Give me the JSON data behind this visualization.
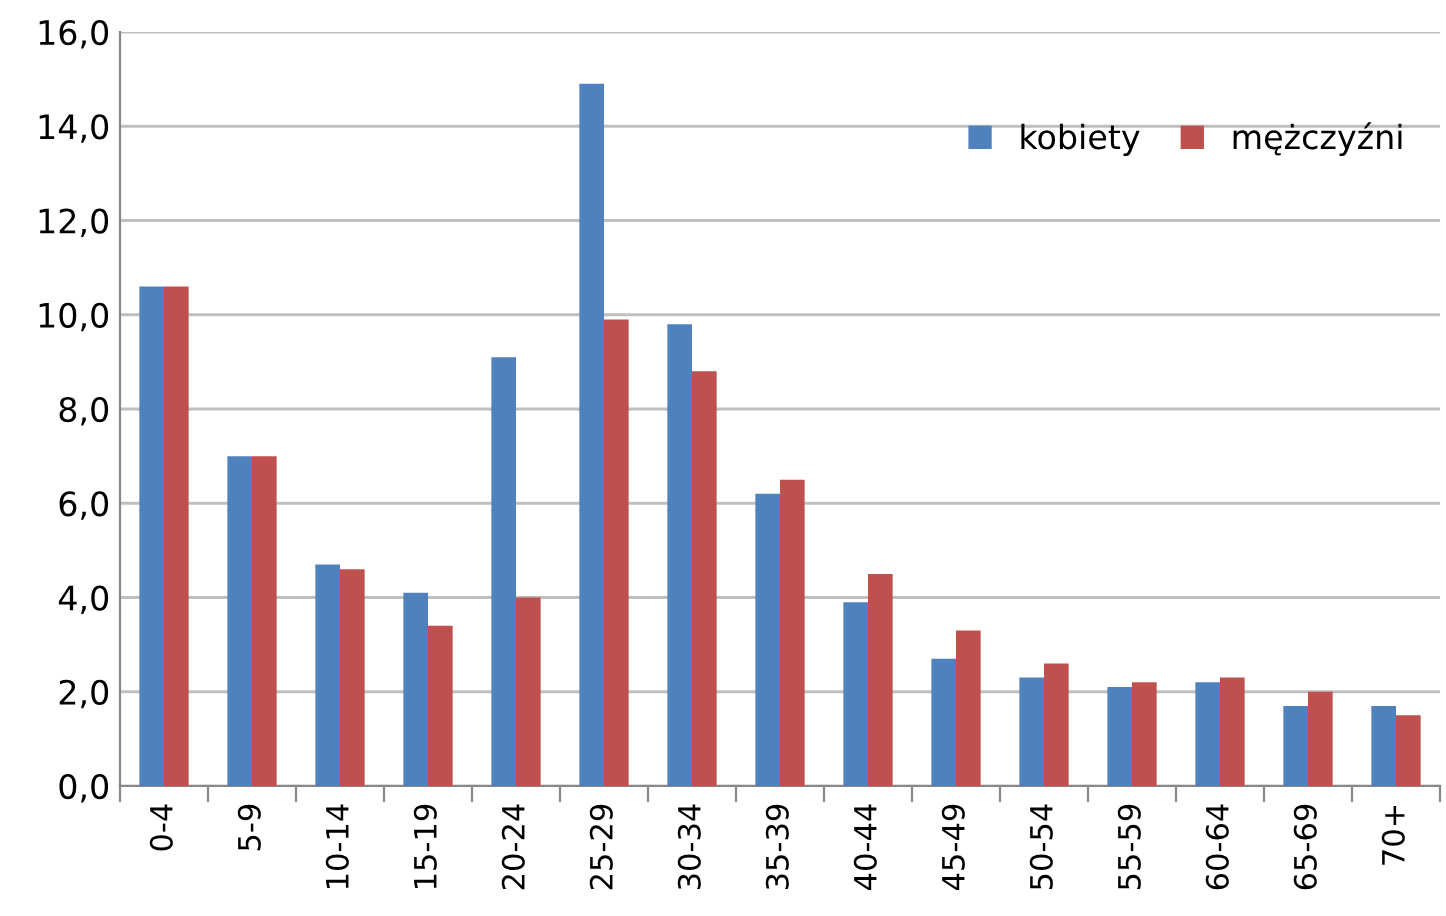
{
  "chart_data": {
    "type": "bar",
    "categories": [
      "0-4",
      "5-9",
      "10-14",
      "15-19",
      "20-24",
      "25-29",
      "30-34",
      "35-39",
      "40-44",
      "45-49",
      "50-54",
      "55-59",
      "60-64",
      "65-69",
      "70+"
    ],
    "series": [
      {
        "name": "kobiety",
        "color": "#4f81bd",
        "values": [
          10.6,
          7.0,
          4.7,
          4.1,
          9.1,
          14.9,
          9.8,
          6.2,
          3.9,
          2.7,
          2.3,
          2.1,
          2.2,
          1.7,
          1.7
        ]
      },
      {
        "name": "mężczyźni",
        "color": "#c0504d",
        "values": [
          10.6,
          7.0,
          4.6,
          3.4,
          4.0,
          9.9,
          8.8,
          6.5,
          4.5,
          3.3,
          2.6,
          2.2,
          2.3,
          2.0,
          1.5
        ]
      }
    ],
    "ylim": [
      0,
      16
    ],
    "yticks": [
      {
        "value": 0,
        "label": "0,0"
      },
      {
        "value": 2,
        "label": "2,0"
      },
      {
        "value": 4,
        "label": "4,0"
      },
      {
        "value": 6,
        "label": "6,0"
      },
      {
        "value": 8,
        "label": "8,0"
      },
      {
        "value": 10,
        "label": "10,0"
      },
      {
        "value": 12,
        "label": "12,0"
      },
      {
        "value": 14,
        "label": "14,0"
      },
      {
        "value": 16,
        "label": "16,0"
      }
    ],
    "grid": "y",
    "legend": "top right"
  }
}
